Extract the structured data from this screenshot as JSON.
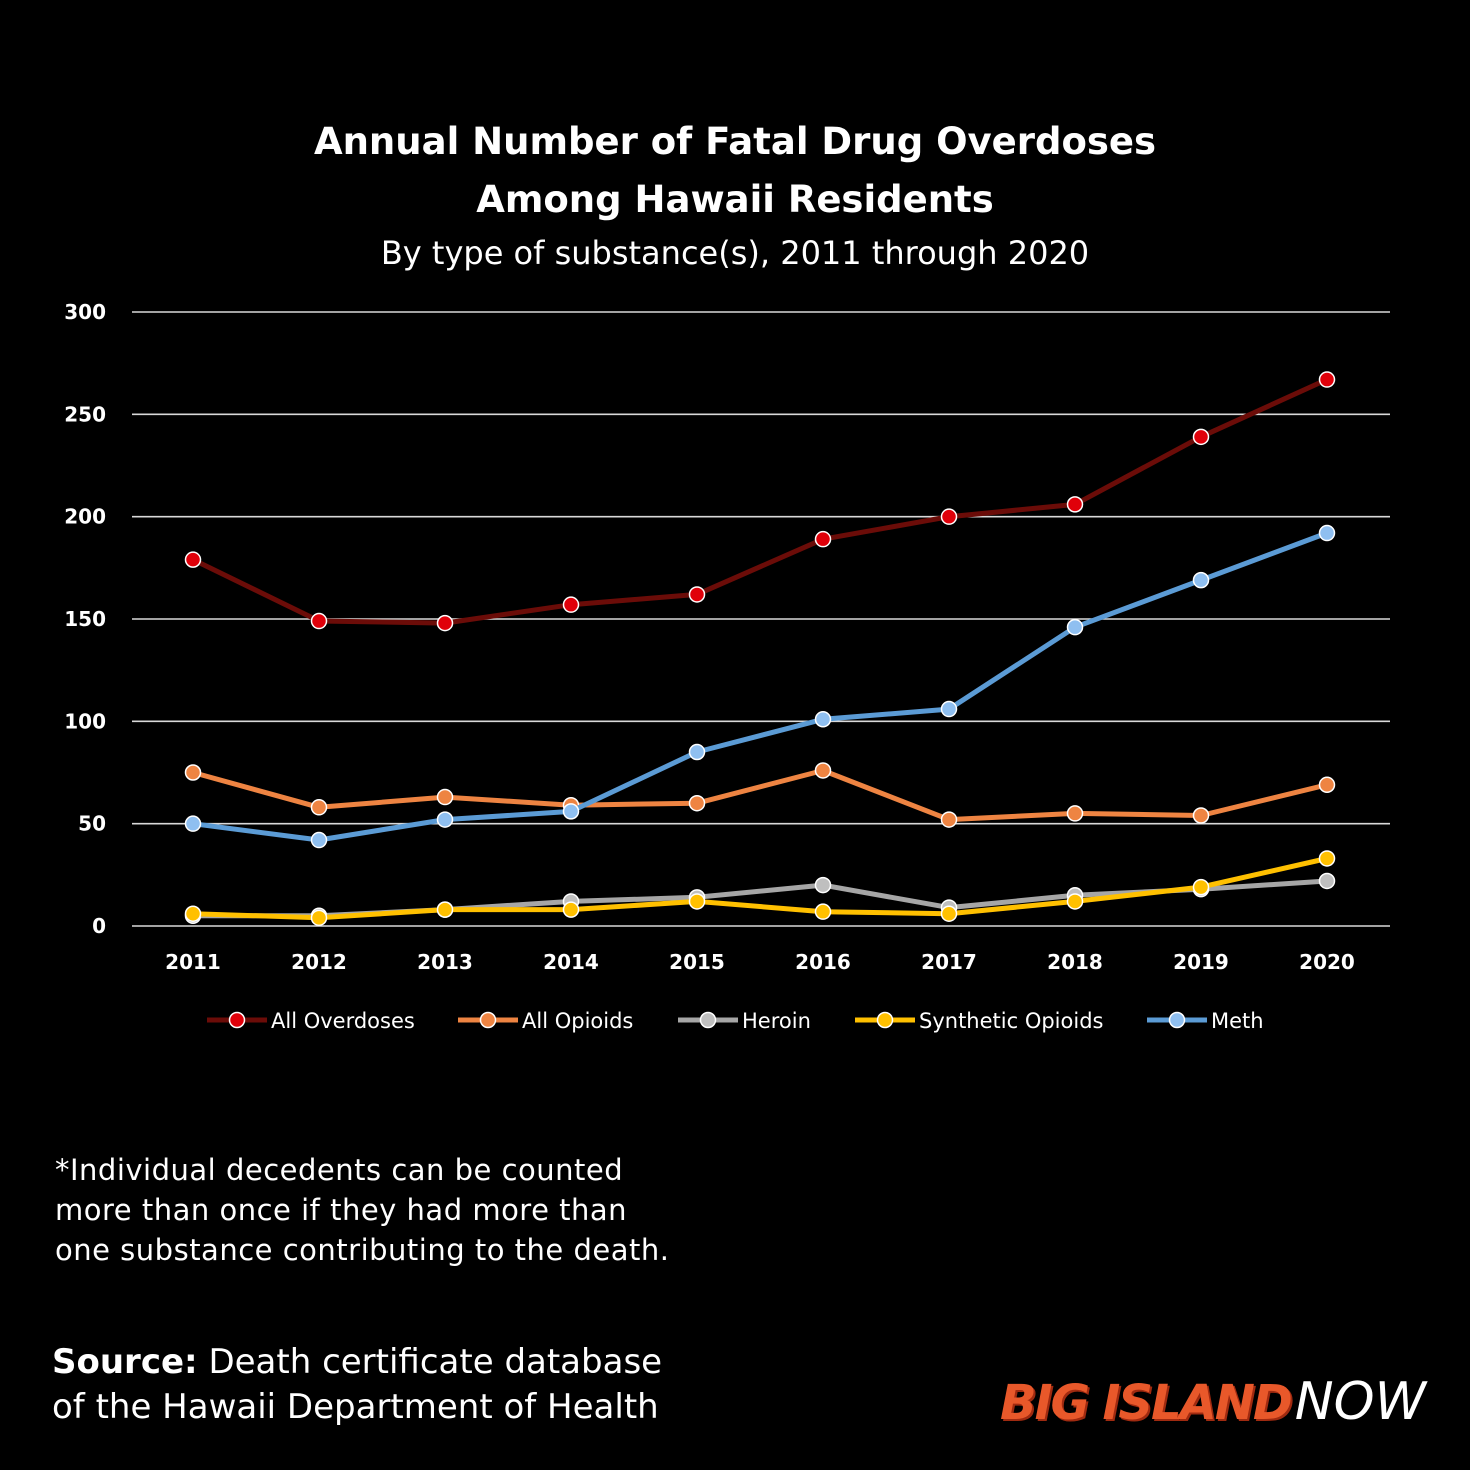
{
  "chart_data": {
    "type": "line",
    "title": [
      "Annual Number of Fatal Drug Overdoses",
      "Among Hawaii Residents"
    ],
    "subtitle": "By type of substance(s), 2011 through 2020",
    "categories": [
      "2011",
      "2012",
      "2013",
      "2014",
      "2015",
      "2016",
      "2017",
      "2018",
      "2019",
      "2020"
    ],
    "ylim": [
      0,
      300
    ],
    "yticks": [
      0,
      50,
      100,
      150,
      200,
      250,
      300
    ],
    "grid": true,
    "legend_position": "bottom",
    "series": [
      {
        "name": "All Overdoses",
        "color": "#6b0c08",
        "marker": "#e0000a",
        "values": [
          179,
          149,
          148,
          157,
          162,
          189,
          200,
          206,
          239,
          267
        ]
      },
      {
        "name": "All Opioids",
        "color": "#ee8442",
        "marker": "#ee8442",
        "values": [
          75,
          58,
          63,
          59,
          60,
          76,
          52,
          55,
          54,
          69
        ]
      },
      {
        "name": "Heroin",
        "color": "#a6a6a6",
        "marker": "#bfbfbf",
        "values": [
          5,
          5,
          8,
          12,
          14,
          20,
          9,
          15,
          18,
          22
        ]
      },
      {
        "name": "Synthetic Opioids",
        "color": "#ffc000",
        "marker": "#ffc000",
        "values": [
          6,
          4,
          8,
          8,
          12,
          7,
          6,
          12,
          19,
          33
        ]
      },
      {
        "name": "Meth",
        "color": "#5b9bd5",
        "marker": "#8fbff0",
        "values": [
          50,
          42,
          52,
          56,
          85,
          101,
          106,
          146,
          169,
          192
        ]
      }
    ]
  },
  "footnote": [
    "*Individual decedents can be counted",
    "more than once if they had more than",
    "one substance contributing to the death."
  ],
  "source": {
    "lead": "Source:",
    "line1": " Death certificate database",
    "line2": "of the Hawaii Department of Health"
  },
  "logo": {
    "part1": "BIG ISLAND",
    "part2": "NOW"
  }
}
